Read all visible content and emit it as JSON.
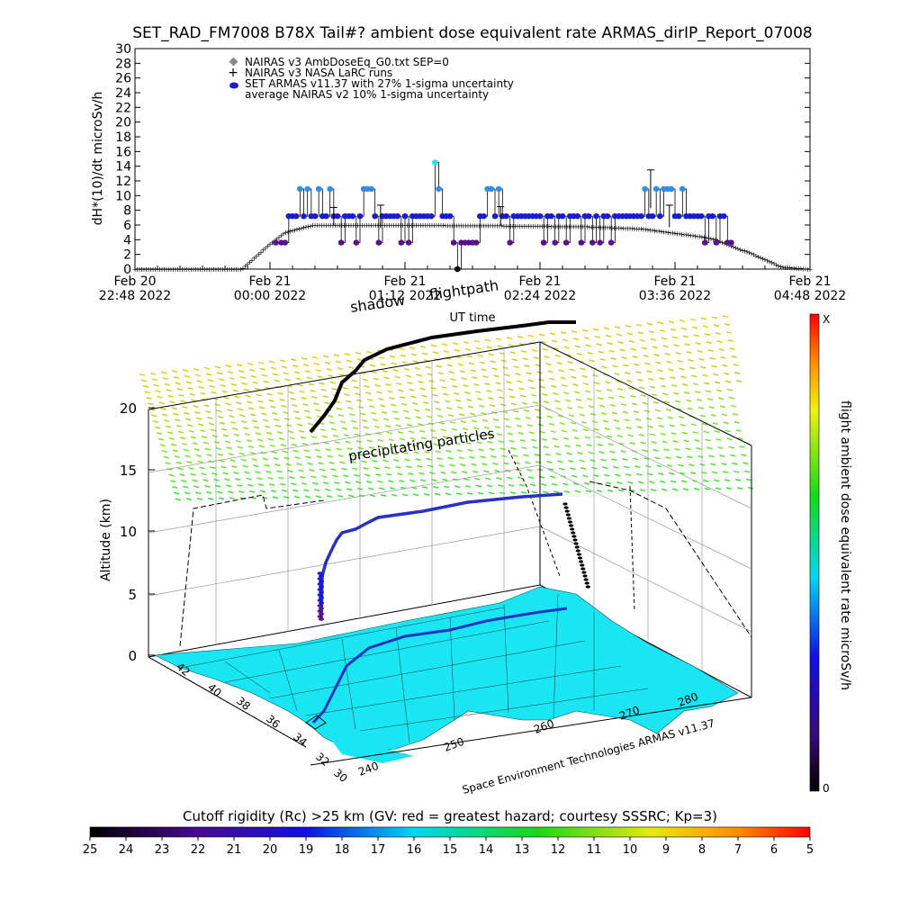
{
  "title": "SET_RAD_FM7008  B78X Tail#? ambient dose equivalent rate ARMAS_dirIP_Report_07008",
  "top_chart": {
    "ylabel": "dH*(10)/dt microSv/h",
    "xlabel": "UT time",
    "yticks": [
      "0",
      "2",
      "4",
      "6",
      "8",
      "10",
      "12",
      "14",
      "16",
      "18",
      "20",
      "22",
      "24",
      "26",
      "28",
      "30"
    ],
    "xticks": [
      {
        "l1": "Feb 20",
        "l2": "22:48 2022"
      },
      {
        "l1": "Feb 21",
        "l2": "00:00 2022"
      },
      {
        "l1": "Feb 21",
        "l2": "01:12 2022"
      },
      {
        "l1": "Feb 21",
        "l2": "02:24 2022"
      },
      {
        "l1": "Feb 21",
        "l2": "03:36 2022"
      },
      {
        "l1": "Feb 21",
        "l2": "04:48 2022"
      }
    ],
    "legend": [
      "NAIRAS v3 AmbDoseEq_G0.txt SEP=0",
      "NAIRAS v3 NASA LaRC runs",
      "SET ARMAS v11.37 with 27% 1-sigma uncertainty",
      "average NAIRAS v2 10% 1-sigma uncertainty"
    ]
  },
  "map3d": {
    "zlabel": "Altitude (km)",
    "zticks": [
      "0",
      "5",
      "10",
      "15",
      "20"
    ],
    "lat_ticks": [
      "30",
      "32",
      "34",
      "36",
      "38",
      "40",
      "42"
    ],
    "lon_ticks": [
      "240",
      "250",
      "260",
      "270",
      "280"
    ],
    "label_shadow": "shadow",
    "label_flightpath": "flightpath",
    "label_precip": "precipitating particles",
    "credit": "Space Environment Technologies ARMAS v11.37"
  },
  "colorbar_right": {
    "label": "flight ambient dose equivalent rate microSv/h",
    "top": "X",
    "bottom": "0"
  },
  "colorbar_bottom": {
    "title": "Cutoff rigidity (Rc) >25 km (GV: red = greatest hazard; courtesy SSSRC; Kp=3)",
    "ticks": [
      "25",
      "24",
      "23",
      "22",
      "21",
      "20",
      "19",
      "18",
      "17",
      "16",
      "15",
      "14",
      "13",
      "12",
      "11",
      "10",
      "9",
      "8",
      "7",
      "6",
      "5"
    ]
  },
  "colors": {
    "armas_low": "#5a0f8c",
    "armas_mid": "#1a1ad0",
    "armas_high": "#2a90e8",
    "armas_peak": "#22e6e6",
    "nairas": "#555555",
    "map_fill": "#19e6f2"
  },
  "chart_data": {
    "type": "scatter",
    "title": "SET_RAD_FM7008  B78X Tail#? ambient dose equivalent rate ARMAS_dirIP_Report_07008",
    "xlabel": "UT time",
    "ylabel": "dH*(10)/dt microSv/h",
    "xlim": [
      "2022-02-20 22:48",
      "2022-02-21 04:48"
    ],
    "ylim": [
      0,
      30
    ],
    "series": [
      {
        "name": "NAIRAS v3 AmbDoseEq_G0.txt SEP=0",
        "x_min": [
          0,
          57,
          70,
          80,
          95,
          105,
          150,
          200,
          240,
          270,
          300,
          310,
          330,
          345,
          360
        ],
        "values": [
          0,
          0,
          3,
          5,
          6,
          6,
          6,
          5.9,
          5.8,
          5.5,
          4.5,
          4,
          2,
          0.3,
          0
        ]
      },
      {
        "name": "SET ARMAS v11.37 with 27% 1-sigma uncertainty",
        "x_min": [
          75,
          78,
          80,
          82,
          84,
          86,
          88,
          90,
          92,
          94,
          96,
          98,
          100,
          102,
          104,
          106,
          108,
          110,
          112,
          114,
          116,
          118,
          120,
          122,
          124,
          126,
          128,
          130,
          132,
          134,
          136,
          138,
          140,
          142,
          144,
          146,
          148,
          150,
          152,
          154,
          156,
          158,
          160,
          162,
          164,
          166,
          168,
          170,
          172,
          174,
          176,
          178,
          180,
          182,
          184,
          186,
          188,
          190,
          192,
          194,
          196,
          198,
          200,
          202,
          204,
          206,
          208,
          210,
          212,
          214,
          216,
          218,
          220,
          222,
          224,
          226,
          228,
          230,
          232,
          234,
          236,
          238,
          240,
          242,
          244,
          246,
          248,
          250,
          252,
          254,
          256,
          258,
          260,
          262,
          264,
          266,
          268,
          270,
          272,
          274,
          276,
          278,
          280,
          282,
          284,
          286,
          288,
          290,
          292,
          294,
          296,
          298,
          300,
          302,
          304,
          306,
          308,
          310,
          312,
          314,
          316,
          318
        ],
        "values": [
          3.6,
          3.6,
          3.6,
          7.2,
          7.2,
          7.2,
          10.9,
          7.2,
          10.9,
          7.2,
          7.2,
          10.9,
          7.2,
          7.2,
          10.9,
          7.2,
          7.2,
          3.6,
          7.2,
          7.2,
          7.2,
          3.6,
          7.2,
          10.9,
          10.9,
          10.9,
          7.2,
          3.6,
          7.2,
          7.2,
          7.2,
          7.2,
          7.2,
          3.6,
          7.2,
          3.6,
          7.2,
          7.2,
          7.2,
          7.2,
          7.2,
          7.2,
          14.5,
          10.9,
          7.2,
          7.2,
          7.2,
          3.6,
          0,
          3.6,
          3.6,
          3.6,
          3.6,
          3.6,
          7.2,
          7.2,
          10.9,
          10.9,
          7.2,
          10.9,
          7.2,
          7.2,
          3.6,
          7.2,
          7.2,
          7.2,
          7.2,
          7.2,
          7.2,
          7.2,
          7.2,
          3.6,
          7.2,
          7.2,
          3.6,
          7.2,
          7.2,
          3.6,
          7.2,
          7.2,
          7.2,
          3.6,
          7.2,
          7.2,
          3.6,
          7.2,
          3.6,
          7.2,
          7.2,
          3.6,
          7.2,
          7.2,
          7.2,
          7.2,
          7.2,
          7.2,
          7.2,
          7.2,
          10.9,
          7.2,
          7.2,
          10.9,
          7.2,
          10.9,
          10.9,
          10.9,
          7.2,
          7.2,
          10.9,
          7.2,
          7.2,
          7.2,
          7.2,
          7.2,
          3.6,
          7.2,
          7.2,
          3.6,
          7.2,
          7.2,
          3.6,
          3.6
        ]
      }
    ]
  }
}
